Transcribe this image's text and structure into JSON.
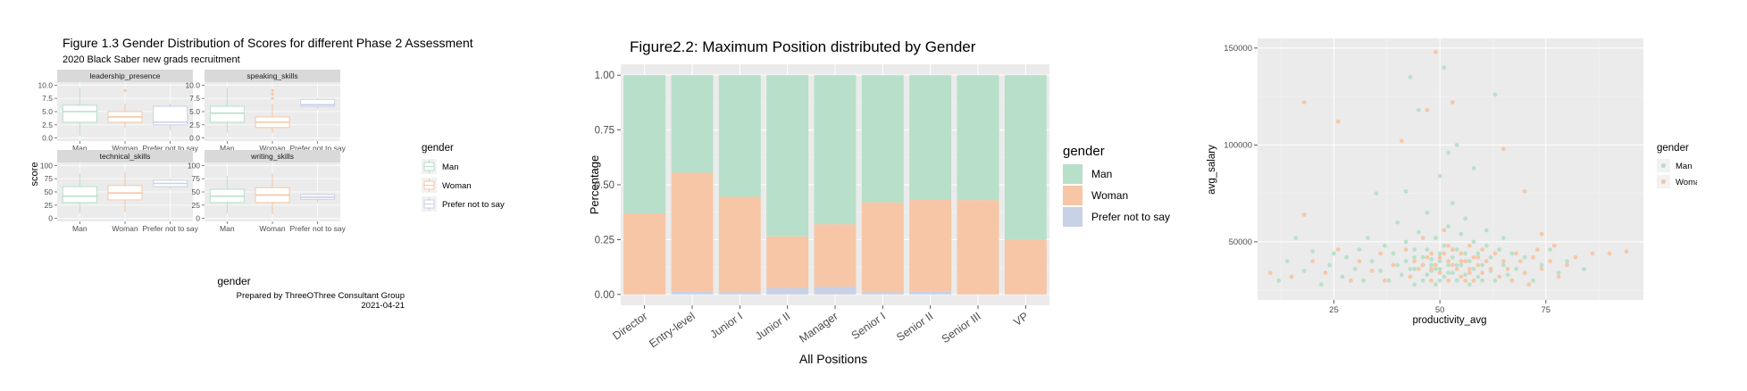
{
  "colors": {
    "man": "#b7dfc9",
    "woman": "#f6c6a6",
    "prefer": "#c8d1e6",
    "panel": "#ebebeb",
    "strip": "#d9d9d9",
    "grid": "#ffffff",
    "axis_text": "#4d4d4d"
  },
  "chart_data": [
    {
      "type": "boxplot",
      "title": "Figure 1.3 Gender Distribution of Scores for different Phase 2 Assessment",
      "subtitle": "2020 Black Saber new grads recruitment",
      "xlabel": "gender",
      "ylabel": "score",
      "caption_line1": "Prepared by ThreeOThree Consultant Group",
      "caption_line2": "2021-04-21",
      "categories": [
        "Man",
        "Woman",
        "Prefer not to say"
      ],
      "legend": {
        "title": "gender",
        "items": [
          "Man",
          "Woman",
          "Prefer not to say"
        ],
        "position": "right"
      },
      "facets": [
        {
          "name": "leadership_presence",
          "yticks": [
            "0.0",
            "2.5",
            "5.0",
            "7.5",
            "10.0"
          ],
          "ylim": [
            0,
            10
          ],
          "boxes": [
            {
              "min": 0.5,
              "q1": 3.0,
              "median": 5.0,
              "q3": 6.2,
              "max": 9.5,
              "outliers": []
            },
            {
              "min": 2.0,
              "q1": 3.0,
              "median": 4.0,
              "q3": 5.0,
              "max": 6.5,
              "outliers": [
                9.0
              ]
            },
            {
              "min": 1.5,
              "q1": 2.5,
              "median": 3.0,
              "q3": 6.0,
              "max": 6.5,
              "outliers": []
            }
          ]
        },
        {
          "name": "speaking_skills",
          "yticks": [
            "0.0",
            "2.5",
            "5.0",
            "7.5",
            "10.0"
          ],
          "ylim": [
            0,
            10
          ],
          "boxes": [
            {
              "min": 1.0,
              "q1": 3.0,
              "median": 4.7,
              "q3": 6.0,
              "max": 9.5,
              "outliers": []
            },
            {
              "min": 1.0,
              "q1": 2.0,
              "median": 3.0,
              "q3": 4.0,
              "max": 6.5,
              "outliers": [
                7.5,
                8.3,
                9.0
              ]
            },
            {
              "min": 5.5,
              "q1": 6.0,
              "median": 6.3,
              "q3": 7.3,
              "max": 7.5,
              "outliers": []
            }
          ]
        },
        {
          "name": "technical_skills",
          "yticks": [
            "0",
            "25",
            "50",
            "75",
            "100"
          ],
          "ylim": [
            0,
            100
          ],
          "boxes": [
            {
              "min": 10,
              "q1": 30,
              "median": 42,
              "q3": 60,
              "max": 85,
              "outliers": []
            },
            {
              "min": 12,
              "q1": 35,
              "median": 48,
              "q3": 62,
              "max": 88,
              "outliers": []
            },
            {
              "min": 56,
              "q1": 60,
              "median": 66,
              "q3": 72,
              "max": 75,
              "outliers": []
            }
          ]
        },
        {
          "name": "writing_skills",
          "yticks": [
            "0",
            "25",
            "50",
            "75",
            "100"
          ],
          "ylim": [
            0,
            100
          ],
          "boxes": [
            {
              "min": 10,
              "q1": 30,
              "median": 42,
              "q3": 55,
              "max": 80,
              "outliers": []
            },
            {
              "min": 8,
              "q1": 30,
              "median": 44,
              "q3": 58,
              "max": 85,
              "outliers": []
            },
            {
              "min": 30,
              "q1": 36,
              "median": 40,
              "q3": 45,
              "max": 48,
              "outliers": []
            }
          ]
        }
      ]
    },
    {
      "type": "bar",
      "stacked": true,
      "title": "Figure2.2: Maximum Position distributed by Gender",
      "xlabel": "All Positions",
      "ylabel": "Percentage",
      "ylim": [
        0,
        1
      ],
      "yticks": [
        "0.00",
        "0.25",
        "0.50",
        "0.75",
        "1.00"
      ],
      "categories": [
        "Director",
        "Entry-level",
        "Junior I",
        "Junior II",
        "Manager",
        "Senior I",
        "Senior II",
        "Senior III",
        "VP"
      ],
      "series": [
        {
          "name": "Prefer not to say",
          "values": [
            0.0,
            0.015,
            0.01,
            0.03,
            0.035,
            0.01,
            0.015,
            0.0,
            0.0
          ]
        },
        {
          "name": "Woman",
          "values": [
            0.37,
            0.54,
            0.435,
            0.235,
            0.285,
            0.41,
            0.42,
            0.43,
            0.25
          ]
        },
        {
          "name": "Man",
          "values": [
            0.63,
            0.445,
            0.555,
            0.735,
            0.68,
            0.58,
            0.565,
            0.57,
            0.75
          ]
        }
      ],
      "legend": {
        "title": "gender",
        "items": [
          "Man",
          "Woman",
          "Prefer not to say"
        ],
        "position": "right"
      }
    },
    {
      "type": "scatter",
      "xlabel": "productivity_avg",
      "ylabel": "avg_salary",
      "xlim": [
        7,
        98
      ],
      "ylim": [
        20000,
        155000
      ],
      "xticks": [
        "25",
        "50",
        "75"
      ],
      "yticks": [
        "50000",
        "100000",
        "150000"
      ],
      "legend": {
        "title": "gender",
        "items": [
          "Man",
          "Woman"
        ],
        "position": "right"
      },
      "series": [
        {
          "name": "Man",
          "points": [
            [
              12,
              30000
            ],
            [
              14,
              40000
            ],
            [
              16,
              52000
            ],
            [
              18,
              35000
            ],
            [
              20,
              45000
            ],
            [
              22,
              28000
            ],
            [
              24,
              38000
            ],
            [
              25,
              44000
            ],
            [
              27,
              32000
            ],
            [
              28,
              42000
            ],
            [
              30,
              36000
            ],
            [
              31,
              46000
            ],
            [
              32,
              30000
            ],
            [
              33,
              52000
            ],
            [
              34,
              40000
            ],
            [
              35,
              75000
            ],
            [
              36,
              35000
            ],
            [
              37,
              48000
            ],
            [
              38,
              30000
            ],
            [
              39,
              44000
            ],
            [
              40,
              38000
            ],
            [
              40,
              60000
            ],
            [
              41,
              33000
            ],
            [
              42,
              50000
            ],
            [
              42,
              76000
            ],
            [
              43,
              36000
            ],
            [
              43,
              135000
            ],
            [
              44,
              42000
            ],
            [
              44,
              28000
            ],
            [
              45,
              55000
            ],
            [
              45,
              118000
            ],
            [
              46,
              38000
            ],
            [
              46,
              30000
            ],
            [
              47,
              46000
            ],
            [
              47,
              65000
            ],
            [
              48,
              35000
            ],
            [
              48,
              41000
            ],
            [
              49,
              52000
            ],
            [
              49,
              28000
            ],
            [
              50,
              36000
            ],
            [
              50,
              44000
            ],
            [
              50,
              84000
            ],
            [
              51,
              32000
            ],
            [
              51,
              48000
            ],
            [
              51,
              140000
            ],
            [
              52,
              38000
            ],
            [
              52,
              58000
            ],
            [
              52,
              96000
            ],
            [
              53,
              34000
            ],
            [
              53,
              42000
            ],
            [
              53,
              70000
            ],
            [
              54,
              30000
            ],
            [
              54,
              46000
            ],
            [
              54,
              100000
            ],
            [
              55,
              38000
            ],
            [
              55,
              54000
            ],
            [
              56,
              33000
            ],
            [
              56,
              44000
            ],
            [
              56,
              62000
            ],
            [
              57,
              28000
            ],
            [
              57,
              40000
            ],
            [
              58,
              36000
            ],
            [
              58,
              50000
            ],
            [
              58,
              88000
            ],
            [
              59,
              32000
            ],
            [
              59,
              44000
            ],
            [
              60,
              38000
            ],
            [
              60,
              30000
            ],
            [
              61,
              48000
            ],
            [
              61,
              56000
            ],
            [
              62,
              35000
            ],
            [
              62,
              42000
            ],
            [
              63,
              126000
            ],
            [
              63,
              30000
            ],
            [
              64,
              46000
            ],
            [
              65,
              38000
            ],
            [
              65,
              52000
            ],
            [
              66,
              33000
            ],
            [
              67,
              44000
            ],
            [
              68,
              36000
            ],
            [
              70,
              42000
            ],
            [
              72,
              30000
            ],
            [
              74,
              38000
            ],
            [
              76,
              46000
            ],
            [
              78,
              34000
            ],
            [
              80,
              40000
            ],
            [
              84,
              36000
            ],
            [
              42,
              40000
            ],
            [
              44,
              36000
            ],
            [
              46,
              42000
            ],
            [
              48,
              38000
            ],
            [
              50,
              40000
            ],
            [
              52,
              34000
            ],
            [
              54,
              38000
            ],
            [
              56,
              40000
            ],
            [
              44,
              46000
            ],
            [
              50,
              30000
            ],
            [
              47,
              33000
            ],
            [
              53,
              46000
            ],
            [
              49,
              36000
            ]
          ]
        },
        {
          "name": "Woman",
          "points": [
            [
              10,
              34000
            ],
            [
              15,
              32000
            ],
            [
              18,
              122000
            ],
            [
              18,
              64000
            ],
            [
              20,
              40000
            ],
            [
              23,
              34000
            ],
            [
              26,
              112000
            ],
            [
              26,
              46000
            ],
            [
              29,
              30000
            ],
            [
              31,
              40000
            ],
            [
              34,
              35000
            ],
            [
              36,
              44000
            ],
            [
              37,
              30000
            ],
            [
              39,
              38000
            ],
            [
              41,
              102000
            ],
            [
              42,
              46000
            ],
            [
              43,
              32000
            ],
            [
              44,
              40000
            ],
            [
              45,
              36000
            ],
            [
              46,
              52000
            ],
            [
              47,
              118000
            ],
            [
              48,
              30000
            ],
            [
              48,
              44000
            ],
            [
              49,
              148000
            ],
            [
              49,
              38000
            ],
            [
              50,
              42000
            ],
            [
              50,
              34000
            ],
            [
              51,
              56000
            ],
            [
              52,
              40000
            ],
            [
              52,
              30000
            ],
            [
              53,
              122000
            ],
            [
              53,
              46000
            ],
            [
              54,
              36000
            ],
            [
              55,
              44000
            ],
            [
              55,
              32000
            ],
            [
              56,
              40000
            ],
            [
              57,
              48000
            ],
            [
              57,
              34000
            ],
            [
              58,
              42000
            ],
            [
              58,
              30000
            ],
            [
              59,
              38000
            ],
            [
              60,
              46000
            ],
            [
              60,
              34000
            ],
            [
              61,
              40000
            ],
            [
              62,
              36000
            ],
            [
              63,
              44000
            ],
            [
              64,
              32000
            ],
            [
              65,
              98000
            ],
            [
              65,
              40000
            ],
            [
              66,
              36000
            ],
            [
              67,
              30000
            ],
            [
              68,
              44000
            ],
            [
              69,
              40000
            ],
            [
              70,
              34000
            ],
            [
              70,
              76000
            ],
            [
              71,
              28000
            ],
            [
              72,
              42000
            ],
            [
              73,
              46000
            ],
            [
              74,
              54000
            ],
            [
              74,
              36000
            ],
            [
              76,
              40000
            ],
            [
              77,
              48000
            ],
            [
              78,
              32000
            ],
            [
              80,
              38000
            ],
            [
              82,
              42000
            ],
            [
              86,
              44000
            ],
            [
              90,
              44000
            ],
            [
              94,
              45000
            ],
            [
              46,
              38000
            ],
            [
              48,
              36000
            ],
            [
              51,
              44000
            ],
            [
              53,
              38000
            ],
            [
              55,
              40000
            ],
            [
              57,
              36000
            ],
            [
              59,
              42000
            ],
            [
              47,
              42000
            ],
            [
              52,
              48000
            ],
            [
              56,
              30000
            ]
          ]
        }
      ]
    }
  ]
}
